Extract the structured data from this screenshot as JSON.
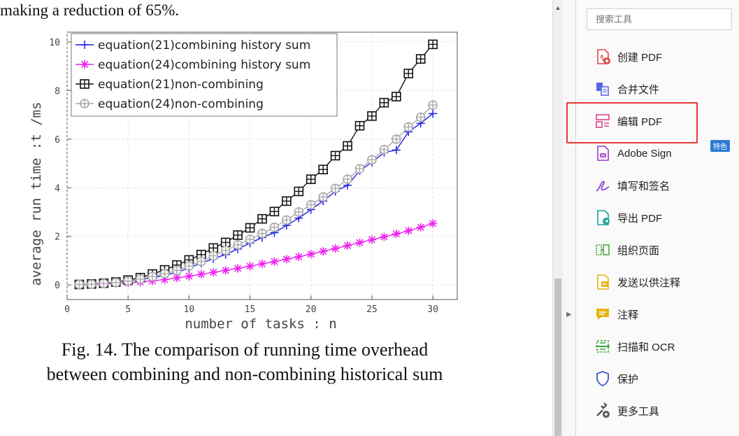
{
  "document": {
    "top_text": "making a reduction of 65%.",
    "caption_line1": "Fig. 14. The comparison of running time overhead",
    "caption_line2": "between combining and non-combining historical sum"
  },
  "chart_data": {
    "type": "line",
    "xlabel": "number of tasks : n",
    "ylabel": "average run time :t /ms",
    "xlim": [
      0,
      32
    ],
    "ylim": [
      -0.6,
      10.4
    ],
    "xticks": [
      0,
      5,
      10,
      15,
      20,
      25,
      30
    ],
    "yticks": [
      0,
      2,
      4,
      6,
      8,
      10
    ],
    "legend_position": "top-left",
    "grid": true,
    "x": [
      1,
      2,
      3,
      4,
      5,
      6,
      7,
      8,
      9,
      10,
      11,
      12,
      13,
      14,
      15,
      16,
      17,
      18,
      19,
      20,
      21,
      22,
      23,
      24,
      25,
      26,
      27,
      28,
      29,
      30
    ],
    "series": [
      {
        "name": "equation(21)combining history sum",
        "color": "#1f1fe6",
        "marker": "plus",
        "values": [
          0.02,
          0.03,
          0.06,
          0.1,
          0.15,
          0.22,
          0.3,
          0.4,
          0.52,
          0.7,
          0.9,
          1.08,
          1.25,
          1.48,
          1.72,
          1.95,
          2.15,
          2.45,
          2.75,
          3.1,
          3.45,
          3.85,
          4.1,
          4.7,
          5.05,
          5.45,
          5.55,
          6.3,
          6.65,
          7.05
        ]
      },
      {
        "name": "equation(24)combining history sum",
        "color": "#ee22ee",
        "marker": "asterisk",
        "values": [
          0.0,
          0.02,
          0.04,
          0.06,
          0.09,
          0.12,
          0.17,
          0.22,
          0.29,
          0.36,
          0.44,
          0.52,
          0.6,
          0.68,
          0.77,
          0.87,
          0.96,
          1.06,
          1.16,
          1.27,
          1.38,
          1.5,
          1.62,
          1.74,
          1.86,
          1.98,
          2.1,
          2.23,
          2.37,
          2.53
        ]
      },
      {
        "name": "equation(21)non-combining",
        "color": "#111111",
        "marker": "boxplus",
        "values": [
          0.02,
          0.04,
          0.07,
          0.12,
          0.2,
          0.3,
          0.45,
          0.62,
          0.82,
          1.03,
          1.25,
          1.52,
          1.75,
          2.05,
          2.35,
          2.72,
          3.02,
          3.45,
          3.85,
          4.35,
          4.75,
          5.32,
          5.72,
          6.55,
          6.95,
          7.5,
          7.75,
          8.7,
          9.3,
          9.9
        ]
      },
      {
        "name": "equation(24)non-combining",
        "color": "#a8a8a8",
        "marker": "circleplus",
        "values": [
          0.02,
          0.03,
          0.06,
          0.1,
          0.16,
          0.24,
          0.34,
          0.46,
          0.6,
          0.78,
          0.97,
          1.2,
          1.42,
          1.65,
          1.88,
          2.12,
          2.37,
          2.67,
          3.0,
          3.3,
          3.62,
          3.97,
          4.35,
          4.78,
          5.15,
          5.57,
          6.0,
          6.5,
          6.9,
          7.4
        ]
      }
    ]
  },
  "scrollbar": {
    "up_arrow": "▲"
  },
  "gutter": {
    "expand_arrow": "▶"
  },
  "tools_panel": {
    "search_placeholder": "搜索工具",
    "badge": "特色",
    "items": [
      {
        "label": "创建 PDF",
        "icon": "create-pdf-icon",
        "color": "#e0474c"
      },
      {
        "label": "合并文件",
        "icon": "combine-files-icon",
        "color": "#5569e0"
      },
      {
        "label": "编辑 PDF",
        "icon": "edit-pdf-icon",
        "color": "#e0418a"
      },
      {
        "label": "Adobe Sign",
        "icon": "adobe-sign-icon",
        "color": "#9a37c9"
      },
      {
        "label": "填写和签名",
        "icon": "fill-sign-icon",
        "color": "#8a3fd0"
      },
      {
        "label": "导出 PDF",
        "icon": "export-pdf-icon",
        "color": "#1aa39a"
      },
      {
        "label": "组织页面",
        "icon": "organize-pages-icon",
        "color": "#4cae3e"
      },
      {
        "label": "发送以供注释",
        "icon": "send-comments-icon",
        "color": "#e8b417"
      },
      {
        "label": "注释",
        "icon": "comment-icon",
        "color": "#e8b417"
      },
      {
        "label": "扫描和 OCR",
        "icon": "scan-ocr-icon",
        "color": "#3aa83a"
      },
      {
        "label": "保护",
        "icon": "protect-icon",
        "color": "#3a59c9"
      },
      {
        "label": "更多工具",
        "icon": "more-tools-icon",
        "color": "#555555"
      }
    ]
  }
}
